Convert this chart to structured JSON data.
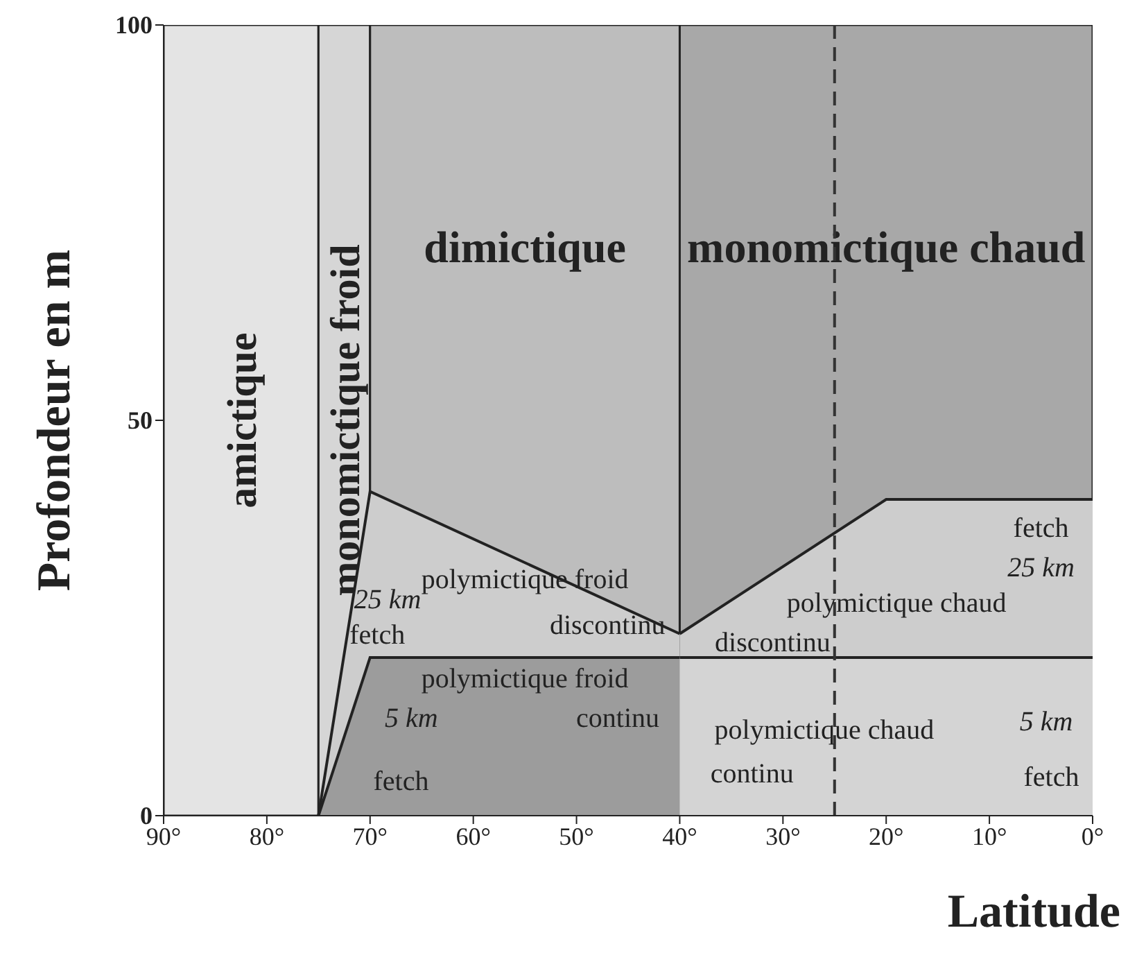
{
  "chart_data": {
    "type": "line",
    "xlabel": "Latitude",
    "ylabel": "Profondeur en m",
    "xlim": [
      90,
      0
    ],
    "ylim": [
      0,
      100
    ],
    "xticks": [
      {
        "value": 90,
        "label": "90°"
      },
      {
        "value": 80,
        "label": "80°"
      },
      {
        "value": 70,
        "label": "70°"
      },
      {
        "value": 60,
        "label": "60°"
      },
      {
        "value": 50,
        "label": "50°"
      },
      {
        "value": 40,
        "label": "40°"
      },
      {
        "value": 30,
        "label": "30°"
      },
      {
        "value": 20,
        "label": "20°"
      },
      {
        "value": 10,
        "label": "10°"
      },
      {
        "value": 0,
        "label": "0°"
      }
    ],
    "yticks": [
      0,
      50,
      100
    ],
    "bands": [
      {
        "axis": "x",
        "from": 90,
        "to": 75,
        "label": "amictique",
        "color": "#e4e4e4"
      },
      {
        "axis": "x",
        "from": 75,
        "to": 70,
        "label": "monomictique froid",
        "color": "#d6d6d6"
      },
      {
        "axis": "x",
        "from": 70,
        "to": 40,
        "label": "dimictique",
        "color": "#bdbdbd"
      },
      {
        "axis": "x",
        "from": 40,
        "to": 0,
        "label": "monomictique chaud",
        "color": "#a8a8a8"
      }
    ],
    "ref_lines": [
      {
        "axis": "x",
        "value": 25,
        "color": "#333333",
        "line_style": "dashed"
      }
    ],
    "series": [
      {
        "type": "area",
        "color": "#cdcdcd",
        "x": [
          75,
          70,
          40
        ],
        "values": [
          0,
          41,
          23
        ]
      },
      {
        "type": "area",
        "color": "#cdcdcd",
        "x": [
          40,
          20,
          0
        ],
        "values": [
          23,
          40,
          40
        ]
      },
      {
        "type": "area",
        "color": "#9c9c9c",
        "x": [
          75,
          70,
          40
        ],
        "values": [
          0,
          20,
          20
        ]
      },
      {
        "type": "area",
        "color": "#d4d4d4",
        "x": [
          40,
          0
        ],
        "values": [
          20,
          20
        ]
      }
    ],
    "annotations": [
      "polymictique froid",
      "discontinu",
      "polymictique chaud",
      "discontinu",
      "polymictique froid",
      "continu",
      "polymictique chaud",
      "continu",
      "fetch",
      "25 km",
      "25 km",
      "fetch",
      "5 km",
      "fetch",
      "5 km",
      "fetch"
    ]
  }
}
